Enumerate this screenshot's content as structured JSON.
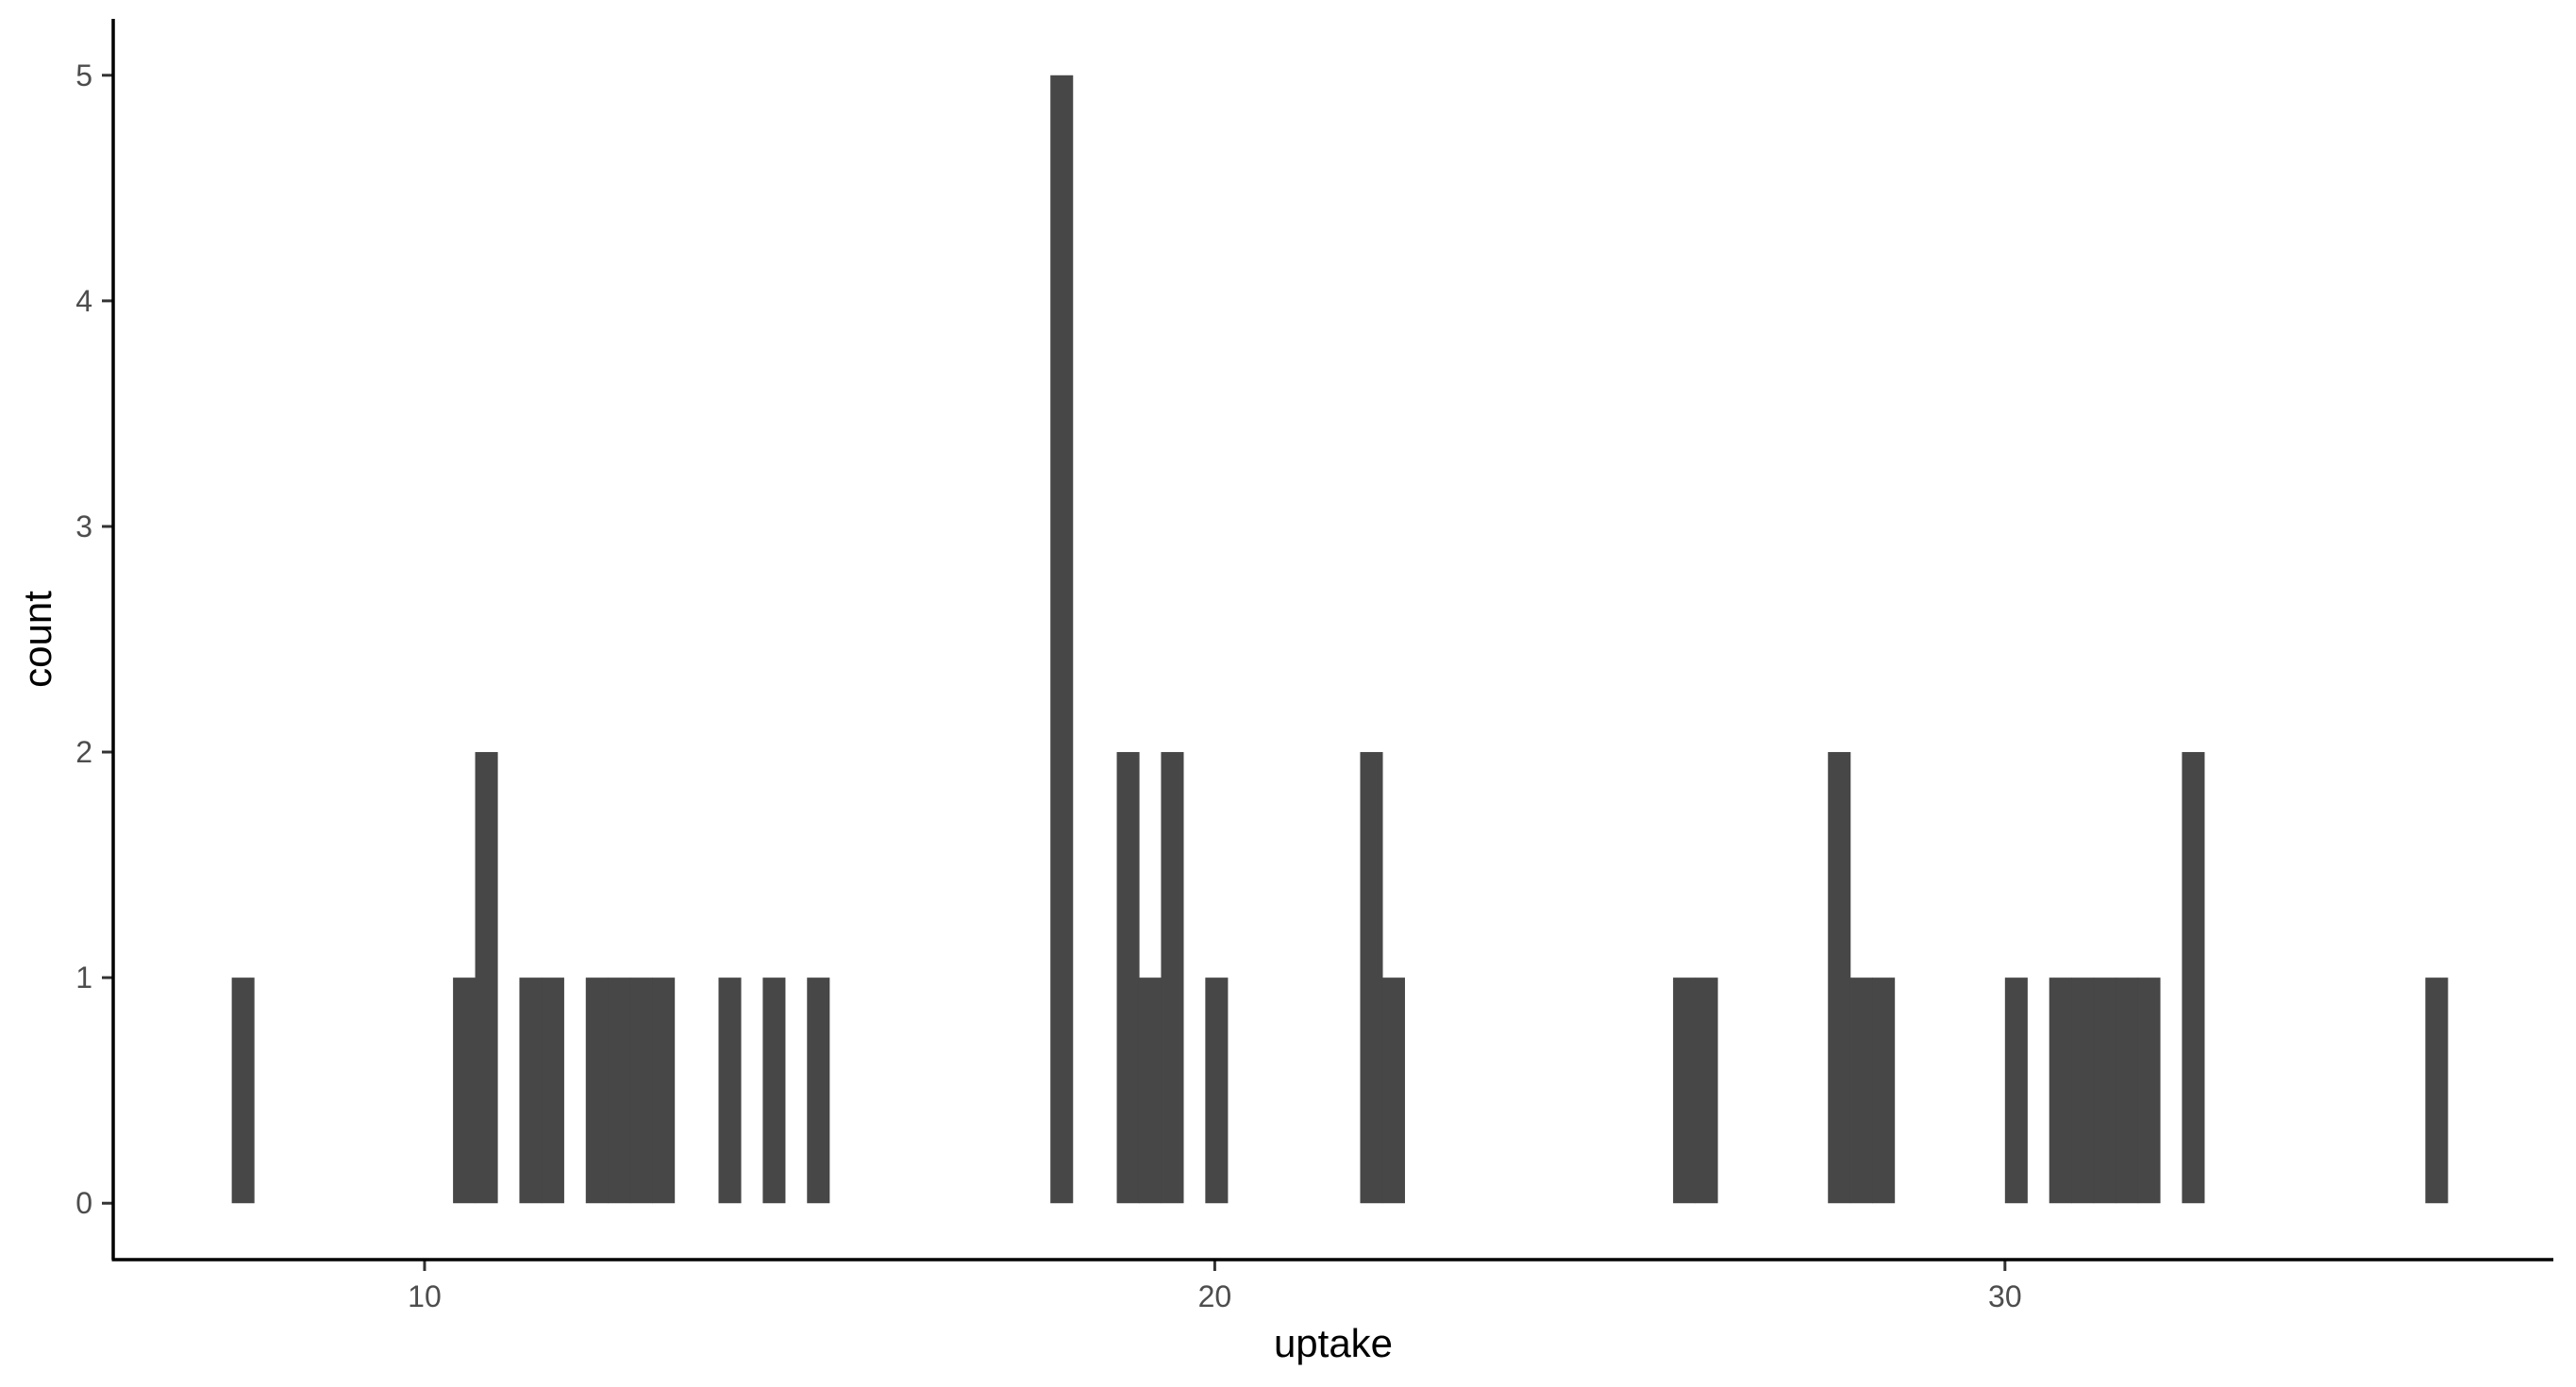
{
  "chart_data": {
    "type": "bar",
    "xlabel": "uptake",
    "ylabel": "count",
    "bin_width": 0.28,
    "xlim": [
      6.06,
      36.94
    ],
    "ylim": [
      -0.25,
      5.25
    ],
    "x_ticks": [
      10,
      20,
      30
    ],
    "y_ticks": [
      0,
      1,
      2,
      3,
      4,
      5
    ],
    "grid": false,
    "legend": "none",
    "bar_color": "#474747",
    "bins": [
      {
        "x": 7.7,
        "count": 1
      },
      {
        "x": 10.5,
        "count": 1
      },
      {
        "x": 10.78,
        "count": 2
      },
      {
        "x": 11.34,
        "count": 1
      },
      {
        "x": 11.62,
        "count": 1
      },
      {
        "x": 12.18,
        "count": 1
      },
      {
        "x": 12.46,
        "count": 1
      },
      {
        "x": 12.74,
        "count": 1
      },
      {
        "x": 13.02,
        "count": 1
      },
      {
        "x": 13.86,
        "count": 1
      },
      {
        "x": 14.42,
        "count": 1
      },
      {
        "x": 14.98,
        "count": 1
      },
      {
        "x": 18.06,
        "count": 5
      },
      {
        "x": 18.9,
        "count": 2
      },
      {
        "x": 19.18,
        "count": 1
      },
      {
        "x": 19.46,
        "count": 2
      },
      {
        "x": 20.02,
        "count": 1
      },
      {
        "x": 21.98,
        "count": 2
      },
      {
        "x": 22.26,
        "count": 1
      },
      {
        "x": 25.94,
        "count": 1
      },
      {
        "x": 26.22,
        "count": 1
      },
      {
        "x": 27.9,
        "count": 2
      },
      {
        "x": 28.18,
        "count": 1
      },
      {
        "x": 28.46,
        "count": 1
      },
      {
        "x": 30.14,
        "count": 1
      },
      {
        "x": 30.7,
        "count": 1
      },
      {
        "x": 30.98,
        "count": 1
      },
      {
        "x": 31.26,
        "count": 1
      },
      {
        "x": 31.54,
        "count": 1
      },
      {
        "x": 31.82,
        "count": 1
      },
      {
        "x": 32.38,
        "count": 2
      },
      {
        "x": 35.46,
        "count": 1
      }
    ]
  }
}
